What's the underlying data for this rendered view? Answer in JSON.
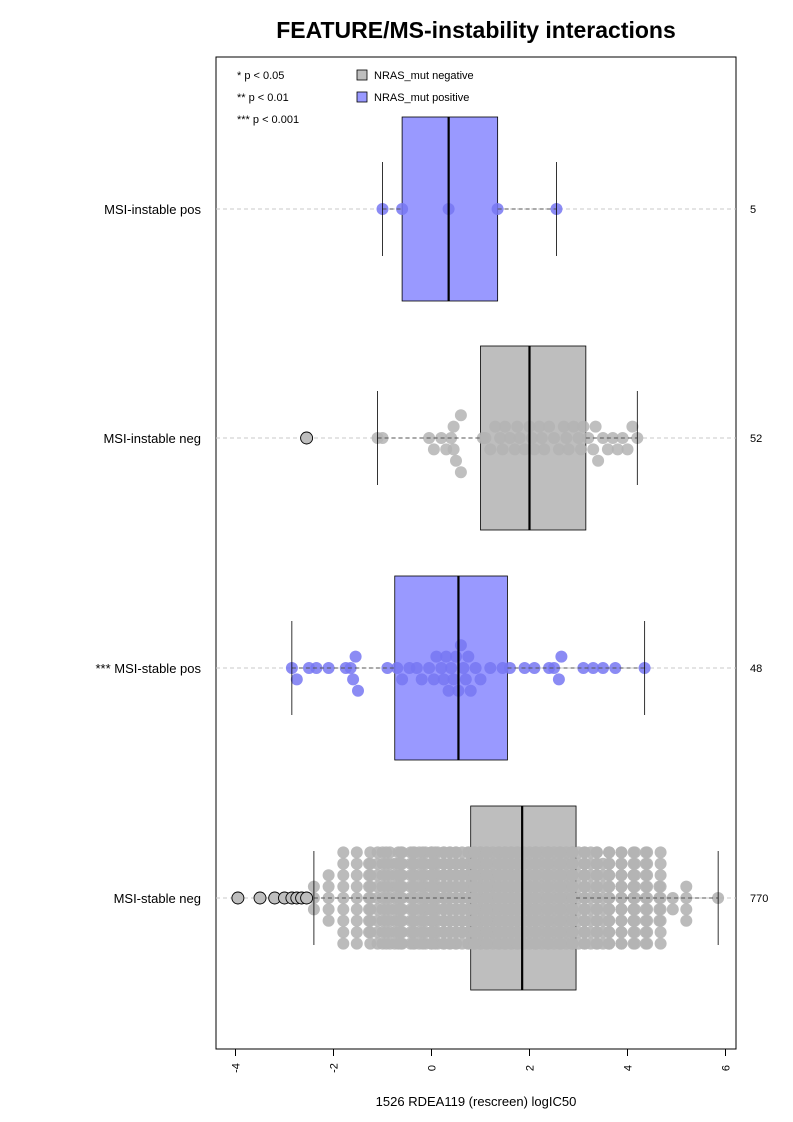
{
  "chart_data": {
    "type": "boxplot",
    "title": "FEATURE/MS-instability interactions",
    "xlabel": "1526 RDEA119 (rescreen) logIC50",
    "ylabel": "",
    "xlim": [
      -4.3,
      6.3
    ],
    "x_ticks": [
      -4,
      -2,
      0,
      2,
      4,
      6
    ],
    "x_tick_labels": [
      "-4",
      "-2",
      "0",
      "2",
      "4",
      "6"
    ],
    "grid": "dashed horizontal lines at each group",
    "significance_legend": [
      "* p < 0.05",
      "** p < 0.01",
      "*** p < 0.001"
    ],
    "legend": [
      {
        "label": "NRAS_mut negative",
        "color": "#bebebe"
      },
      {
        "label": "NRAS_mut positive",
        "color": "#9999ff"
      }
    ],
    "groups": [
      {
        "label": "MSI-instable pos",
        "count": "5",
        "color": "#9999ff",
        "point_color": "#7777f2",
        "whisker_low": -1.0,
        "q1": -0.6,
        "median": 0.35,
        "q3": 1.35,
        "whisker_high": 2.55,
        "outliers": [],
        "points": [
          -1.0,
          -0.6,
          0.35,
          1.35,
          2.55
        ]
      },
      {
        "label": "MSI-instable neg",
        "count": "52",
        "color": "#bebebe",
        "point_color": "#b4b4b4",
        "whisker_low": -1.1,
        "q1": 1.0,
        "median": 2.0,
        "q3": 3.15,
        "whisker_high": 4.2,
        "outliers": [
          -2.55
        ],
        "points": [
          -1.1,
          -1.0,
          -0.05,
          0.05,
          0.2,
          0.3,
          0.4,
          0.45,
          0.45,
          0.5,
          0.6,
          0.6,
          1.05,
          1.1,
          1.2,
          1.3,
          1.4,
          1.45,
          1.5,
          1.6,
          1.7,
          1.75,
          1.8,
          1.9,
          2.0,
          2.05,
          2.1,
          2.2,
          2.25,
          2.3,
          2.4,
          2.5,
          2.6,
          2.7,
          2.75,
          2.8,
          2.9,
          3.0,
          3.05,
          3.1,
          3.2,
          3.3,
          3.35,
          3.4,
          3.5,
          3.6,
          3.7,
          3.8,
          3.9,
          4.0,
          4.1,
          4.2
        ]
      },
      {
        "label": "*** MSI-stable pos",
        "count": "48",
        "color": "#9999ff",
        "point_color": "#7777f2",
        "whisker_low": -2.85,
        "q1": -0.75,
        "median": 0.55,
        "q3": 1.55,
        "whisker_high": 4.35,
        "outliers": [],
        "points": [
          -2.85,
          -2.75,
          -2.5,
          -2.35,
          -2.1,
          -1.75,
          -1.65,
          -1.6,
          -1.55,
          -1.5,
          -0.9,
          -0.7,
          -0.6,
          -0.45,
          -0.3,
          -0.2,
          -0.05,
          0.05,
          0.1,
          0.2,
          0.25,
          0.3,
          0.35,
          0.4,
          0.45,
          0.5,
          0.55,
          0.6,
          0.65,
          0.7,
          0.75,
          0.8,
          0.9,
          1.0,
          1.2,
          1.45,
          1.6,
          1.9,
          2.1,
          2.4,
          2.5,
          2.6,
          2.65,
          3.1,
          3.3,
          3.5,
          3.75,
          4.35
        ]
      },
      {
        "label": "MSI-stable neg",
        "count": "770",
        "color": "#bebebe",
        "point_color": "#b4b4b4",
        "whisker_low": -2.4,
        "q1": 0.8,
        "median": 1.85,
        "q3": 2.95,
        "whisker_high": 5.85,
        "outliers": [
          -3.95,
          -3.5,
          -3.2,
          -3.0,
          -2.85,
          -2.75,
          -2.65,
          -2.55
        ],
        "distribution": [
          [
            -2.4,
            3
          ],
          [
            -2.1,
            5
          ],
          [
            -1.8,
            9
          ],
          [
            -1.4,
            16
          ],
          [
            -1.0,
            26
          ],
          [
            -0.6,
            38
          ],
          [
            -0.3,
            46
          ],
          [
            0.0,
            52
          ],
          [
            0.5,
            60
          ],
          [
            1.0,
            76
          ],
          [
            1.5,
            88
          ],
          [
            2.0,
            88
          ],
          [
            2.5,
            80
          ],
          [
            3.0,
            66
          ],
          [
            3.5,
            50
          ],
          [
            4.0,
            36
          ],
          [
            4.4,
            22
          ],
          [
            4.8,
            11
          ],
          [
            5.2,
            4
          ],
          [
            5.85,
            1
          ]
        ]
      }
    ]
  }
}
